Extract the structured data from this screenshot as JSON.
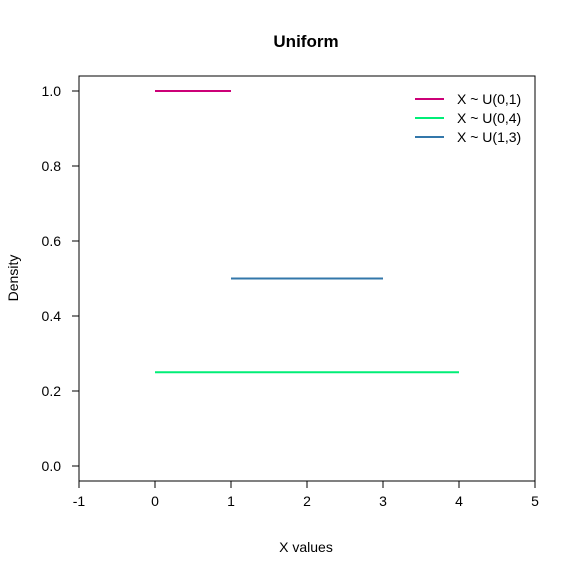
{
  "chart_data": {
    "type": "line",
    "title": "Uniform",
    "xlabel": "X values",
    "ylabel": "Density",
    "xlim": [
      -1,
      5
    ],
    "ylim": [
      0,
      1
    ],
    "x_ticks": [
      -1,
      0,
      1,
      2,
      3,
      4,
      5
    ],
    "y_ticks": [
      0.0,
      0.2,
      0.4,
      0.6,
      0.8,
      1.0
    ],
    "x_tick_labels": [
      "-1",
      "0",
      "1",
      "2",
      "3",
      "4",
      "5"
    ],
    "y_tick_labels": [
      "0.0",
      "0.2",
      "0.4",
      "0.6",
      "0.8",
      "1.0"
    ],
    "grid": false,
    "legend_position": "top-right",
    "series": [
      {
        "name": "X ~ U(0,1)",
        "color": "#cc0077",
        "x": [
          0,
          1
        ],
        "y": [
          1.0,
          1.0
        ]
      },
      {
        "name": "X ~ U(0,4)",
        "color": "#00ee77",
        "x": [
          0,
          4
        ],
        "y": [
          0.25,
          0.25
        ]
      },
      {
        "name": "X ~ U(1,3)",
        "color": "#3377aa",
        "x": [
          1,
          3
        ],
        "y": [
          0.5,
          0.5
        ]
      }
    ]
  }
}
